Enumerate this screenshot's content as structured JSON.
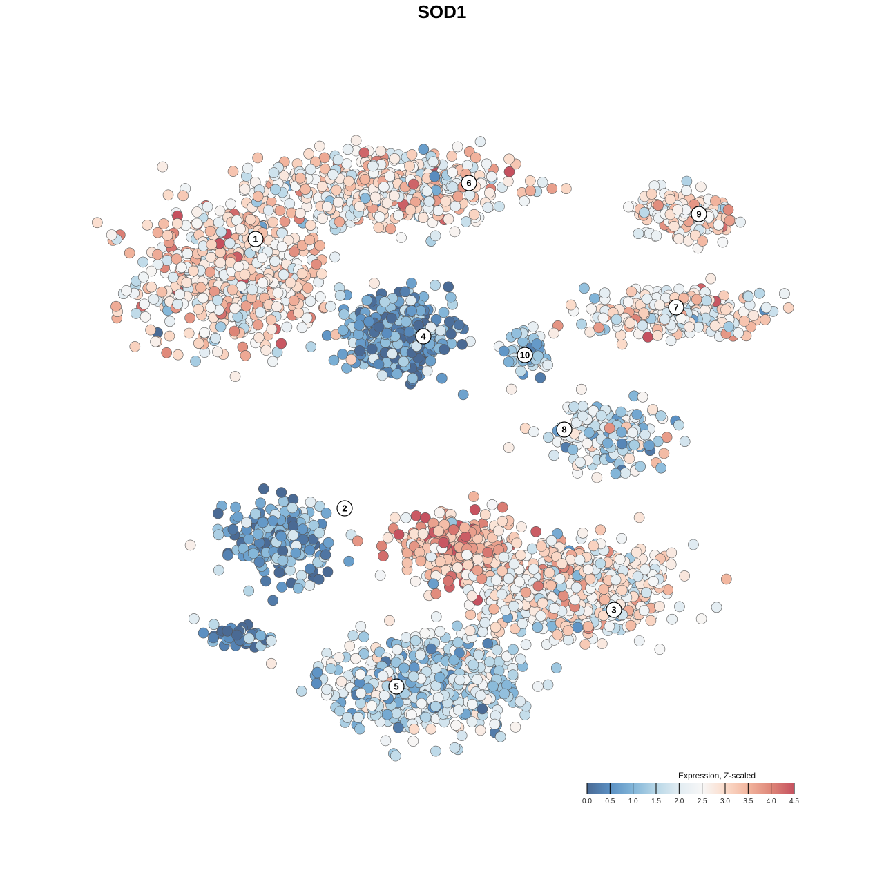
{
  "chart_data": {
    "type": "scatter",
    "title": "SOD1",
    "xlabel": "",
    "ylabel": "",
    "grid": false,
    "legend": {
      "title": "Expression, Z-scaled",
      "placement": "bottom-right",
      "ticks": [
        "0.0",
        "0.5",
        "1.0",
        "1.5",
        "2.0",
        "2.5",
        "3.0",
        "3.5",
        "4.0",
        "4.5"
      ],
      "range": [
        0,
        4.5
      ],
      "colors": [
        "#4a6a94",
        "#5b90c3",
        "#82b5d8",
        "#b8d7e7",
        "#e2ecf2",
        "#f7f7f7",
        "#fbdccb",
        "#f2b59e",
        "#de8678",
        "#c5515f"
      ]
    },
    "clusters": [
      {
        "label": "1",
        "center": [
          -10,
          8
        ],
        "spread": [
          4.2,
          3.2
        ],
        "label_pos": [
          -9,
          9.8
        ],
        "mean_expression": 2.8,
        "n": 600
      },
      {
        "label": "6",
        "center": [
          -2.7,
          12.3
        ],
        "spread": [
          5.5,
          1.6
        ],
        "label_pos": [
          1.3,
          12.5
        ],
        "mean_expression": 2.7,
        "n": 520
      },
      {
        "label": "9",
        "center": [
          11.7,
          11
        ],
        "spread": [
          2.3,
          1.0
        ],
        "label_pos": [
          12.4,
          11
        ],
        "mean_expression": 2.7,
        "n": 140
      },
      {
        "label": "7",
        "center": [
          11.3,
          6.3
        ],
        "spread": [
          4.0,
          1.1
        ],
        "label_pos": [
          11.3,
          6.5
        ],
        "mean_expression": 2.5,
        "n": 260
      },
      {
        "label": "4",
        "center": [
          -2,
          5
        ],
        "spread": [
          2.3,
          1.6
        ],
        "label_pos": [
          -0.9,
          5.1
        ],
        "mean_expression": 0.6,
        "n": 420
      },
      {
        "label": "10",
        "center": [
          4,
          4.2
        ],
        "spread": [
          1.0,
          1.0
        ],
        "label_pos": [
          4,
          4.2
        ],
        "mean_expression": 1.5,
        "n": 50
      },
      {
        "label": "8",
        "center": [
          8,
          0.4
        ],
        "spread": [
          2.6,
          1.3
        ],
        "label_pos": [
          5.9,
          0.6
        ],
        "mean_expression": 1.8,
        "n": 200
      },
      {
        "label": "2",
        "center": [
          -7.7,
          -4.7
        ],
        "spread": [
          2.3,
          1.7
        ],
        "label_pos": [
          -4.7,
          -3.2
        ],
        "mean_expression": 0.8,
        "n": 220
      },
      {
        "label": "3",
        "center": [
          6,
          -7
        ],
        "spread": [
          4.3,
          2.0
        ],
        "label_pos": [
          8.3,
          -8.1
        ],
        "mean_expression": 2.6,
        "n": 650
      },
      {
        "label": "",
        "center": [
          0.5,
          -5
        ],
        "spread": [
          2.6,
          1.3
        ],
        "label_pos": null,
        "mean_expression": 3.4,
        "n": 300
      },
      {
        "label": "5",
        "center": [
          -0.7,
          -11.7
        ],
        "spread": [
          4.0,
          2.0
        ],
        "label_pos": [
          -2.2,
          -11.8
        ],
        "mean_expression": 1.7,
        "n": 600
      },
      {
        "label": "",
        "center": [
          -9.7,
          -9.3
        ],
        "spread": [
          1.6,
          0.6
        ],
        "label_pos": null,
        "mean_expression": 0.5,
        "n": 40
      }
    ]
  }
}
